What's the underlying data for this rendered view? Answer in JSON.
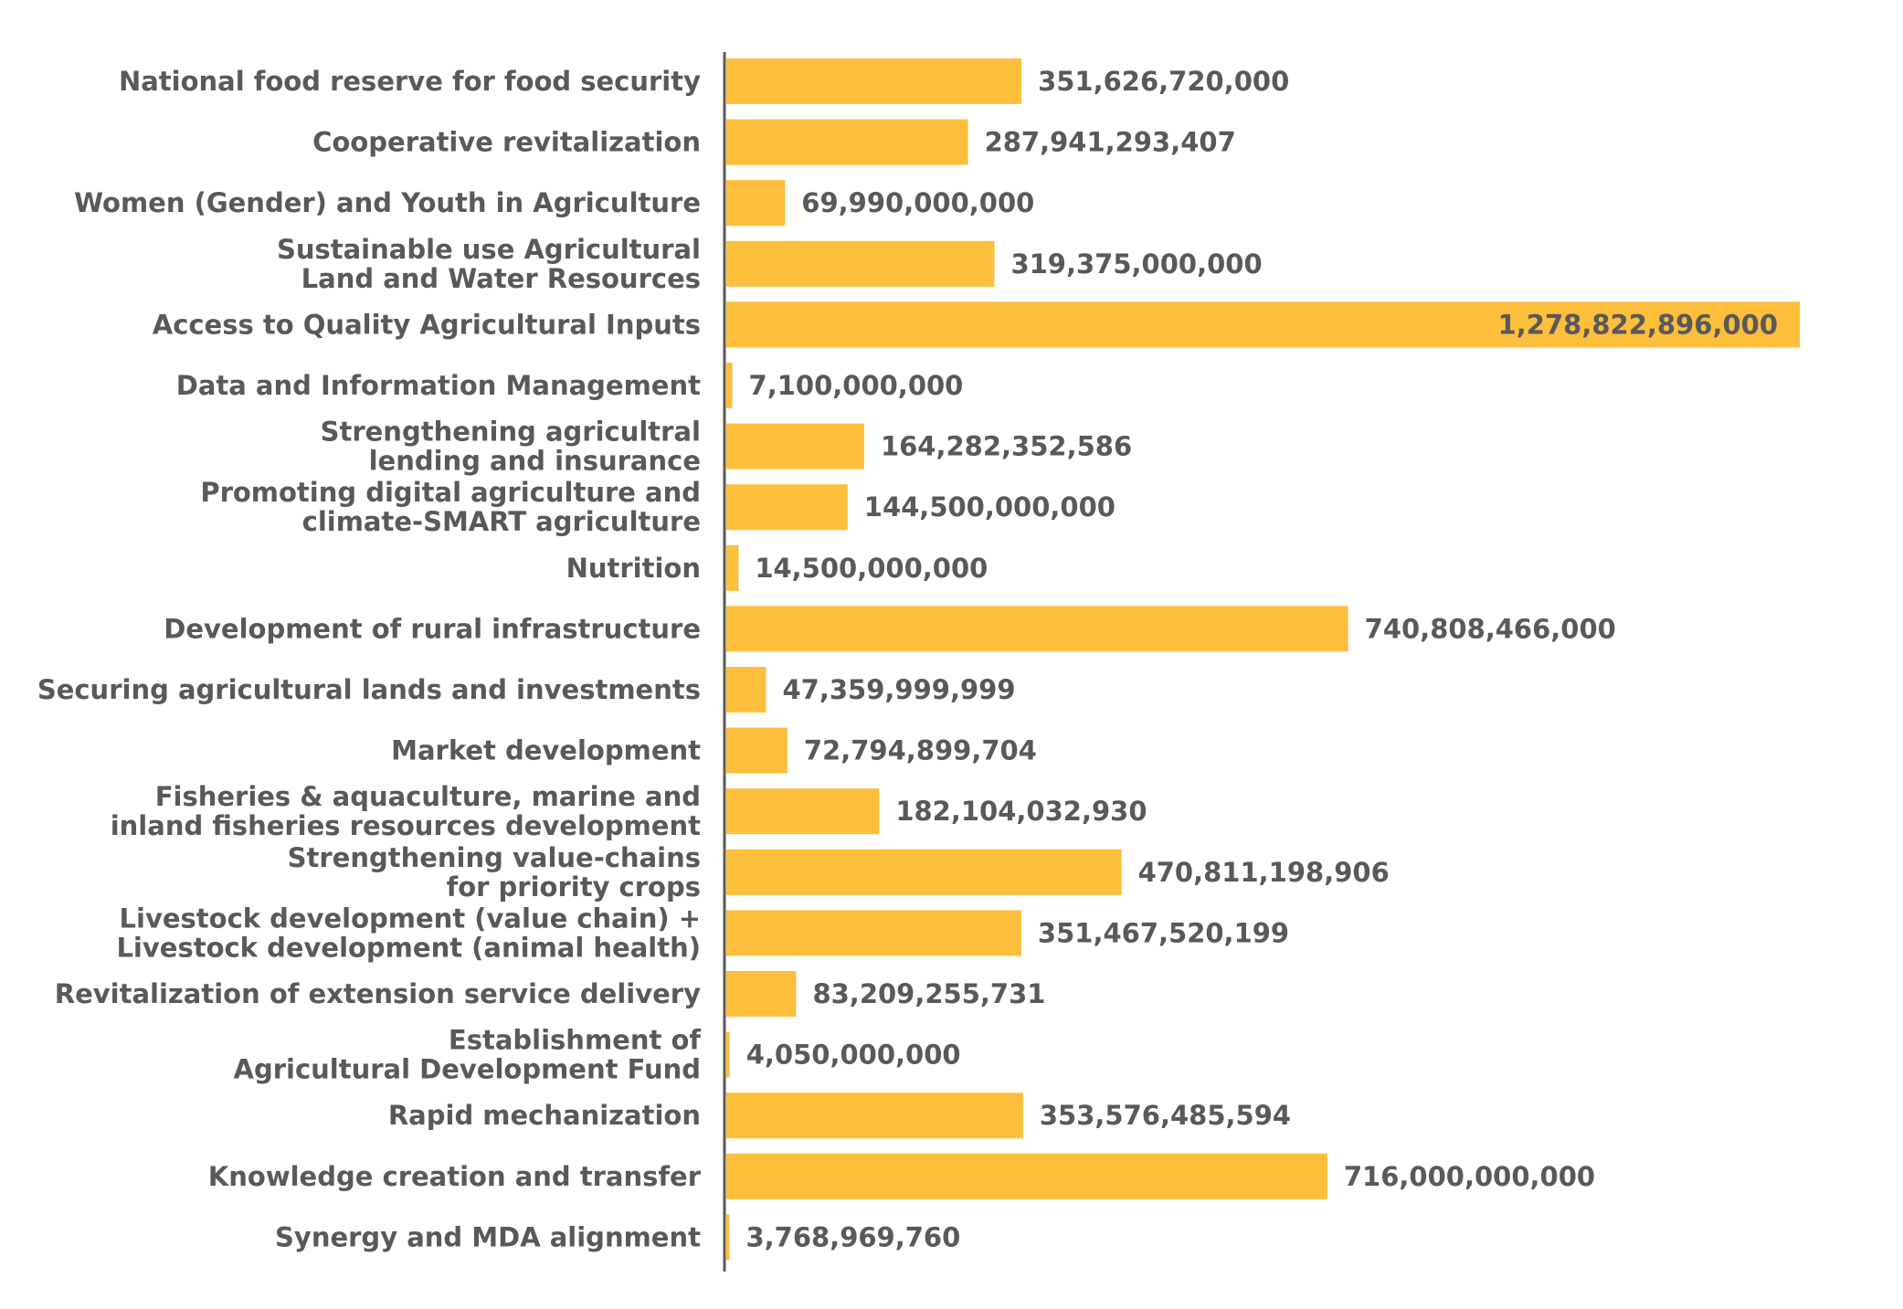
{
  "chart_data": {
    "type": "bar",
    "orientation": "horizontal",
    "title": "",
    "xlabel": "",
    "ylabel": "",
    "bar_color": "#FDBE3B",
    "text_color": "#58595B",
    "axis_color": "#58595B",
    "xlim": [
      0,
      1278822896000
    ],
    "grid": false,
    "categories": [
      [
        "National food reserve for food security"
      ],
      [
        "Cooperative revitalization"
      ],
      [
        "Women (Gender) and Youth in Agriculture"
      ],
      [
        "Sustainable use Agricultural",
        "Land and Water Resources"
      ],
      [
        "Access to Quality Agricultural Inputs"
      ],
      [
        "Data and Information Management"
      ],
      [
        "Strengthening agricultral",
        "lending and insurance"
      ],
      [
        "Promoting digital agriculture and",
        "climate-SMART agriculture"
      ],
      [
        "Nutrition"
      ],
      [
        "Development of rural infrastructure"
      ],
      [
        "Securing agricultural lands and investments"
      ],
      [
        "Market development"
      ],
      [
        "Fisheries & aquaculture, marine and",
        "inland fisheries resources development"
      ],
      [
        "Strengthening value-chains",
        "for priority crops"
      ],
      [
        "Livestock development (value chain) +",
        "Livestock development (animal health)"
      ],
      [
        "Revitalization of extension service delivery"
      ],
      [
        "Establishment of",
        "Agricultural Development Fund"
      ],
      [
        "Rapid mechanization"
      ],
      [
        "Knowledge creation and transfer"
      ],
      [
        "Synergy and MDA alignment"
      ]
    ],
    "values": [
      351626720000,
      287941293407,
      69990000000,
      319375000000,
      1278822896000,
      7100000000,
      164282352586,
      144500000000,
      14500000000,
      740808466000,
      47359999999,
      72794899704,
      182104032930,
      470811198906,
      351467520199,
      83209255731,
      4050000000,
      353576485594,
      716000000000,
      3768969760
    ],
    "value_labels": [
      "351,626,720,000",
      "287,941,293,407",
      "69,990,000,000",
      "319,375,000,000",
      "1,278,822,896,000",
      "7,100,000,000",
      "164,282,352,586",
      "144,500,000,000",
      "14,500,000,000",
      "740,808,466,000",
      "47,359,999,999",
      "72,794,899,704",
      "182,104,032,930",
      "470,811,198,906",
      "351,467,520,199",
      "83,209,255,731",
      "4,050,000,000",
      "353,576,485,594",
      "716,000,000,000",
      "3,768,969,760"
    ]
  }
}
